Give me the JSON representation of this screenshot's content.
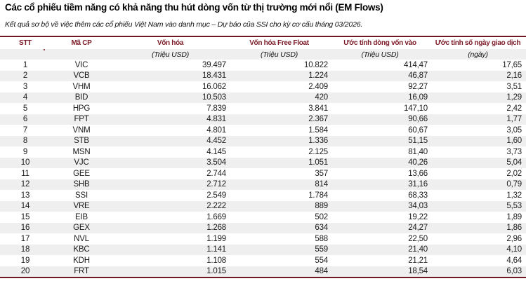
{
  "title": "Các cổ phiếu tiềm năng có khả năng thu hút dòng vốn từ thị trường mới nổi (EM Flows)",
  "subtitle": "Kết quả sơ bộ về việc thêm các cổ phiếu Việt Nam vào danh mục – Dự báo của SSI cho kỳ cơ cấu tháng 03/2026.",
  "colors": {
    "accent_text": "#7C1B28",
    "accent_line": "#6F1722",
    "stripe": "#EFEFEF",
    "body_text": "#1b1b1b"
  },
  "table": {
    "columns": [
      {
        "key": "stt",
        "label": "STT",
        "sub": ""
      },
      {
        "key": "ticker",
        "label": "Mã CP",
        "sub": ""
      },
      {
        "key": "mcap",
        "label": "Vốn hóa",
        "sub": "(Triệu USD)"
      },
      {
        "key": "ffmcap",
        "label": "Vốn hóa Free Float",
        "sub": "(Triệu USD)"
      },
      {
        "key": "inflow",
        "label": "Ước tính dòng vốn vào",
        "sub": "(Triệu USD)"
      },
      {
        "key": "days",
        "label": "Ước tính số ngày giao dịch",
        "sub": "(ngày)"
      }
    ],
    "rows": [
      [
        "1",
        "VIC",
        "39.497",
        "10.822",
        "414,47",
        "17,65"
      ],
      [
        "2",
        "VCB",
        "18.431",
        "1.224",
        "46,87",
        "2,16"
      ],
      [
        "3",
        "VHM",
        "16.062",
        "2.409",
        "92,27",
        "3,51"
      ],
      [
        "4",
        "BID",
        "10.503",
        "420",
        "16,09",
        "1,29"
      ],
      [
        "5",
        "HPG",
        "7.839",
        "3.841",
        "147,10",
        "2,42"
      ],
      [
        "6",
        "FPT",
        "4.831",
        "2.367",
        "90,66",
        "1,77"
      ],
      [
        "7",
        "VNM",
        "4.801",
        "1.584",
        "60,67",
        "3,05"
      ],
      [
        "8",
        "STB",
        "4.452",
        "1.336",
        "51,15",
        "1,60"
      ],
      [
        "9",
        "MSN",
        "4.145",
        "2.125",
        "81,40",
        "3,73"
      ],
      [
        "10",
        "VJC",
        "3.504",
        "1.051",
        "40,26",
        "5,04"
      ],
      [
        "11",
        "GEE",
        "2.744",
        "357",
        "13,66",
        "2,02"
      ],
      [
        "12",
        "SHB",
        "2.712",
        "814",
        "31,16",
        "0,79"
      ],
      [
        "13",
        "SSI",
        "2.549",
        "1.784",
        "68,33",
        "1,32"
      ],
      [
        "14",
        "VRE",
        "2.222",
        "889",
        "34,03",
        "5,53"
      ],
      [
        "15",
        "EIB",
        "1.669",
        "502",
        "19,22",
        "1,89"
      ],
      [
        "16",
        "GEX",
        "1.268",
        "634",
        "24,27",
        "1,86"
      ],
      [
        "17",
        "NVL",
        "1.199",
        "588",
        "22,50",
        "2,96"
      ],
      [
        "18",
        "KBC",
        "1.141",
        "559",
        "21,40",
        "4,10"
      ],
      [
        "19",
        "KDH",
        "1.108",
        "554",
        "21,21",
        "4,64"
      ],
      [
        "20",
        "FRT",
        "1.015",
        "484",
        "18,54",
        "6,03"
      ]
    ]
  }
}
